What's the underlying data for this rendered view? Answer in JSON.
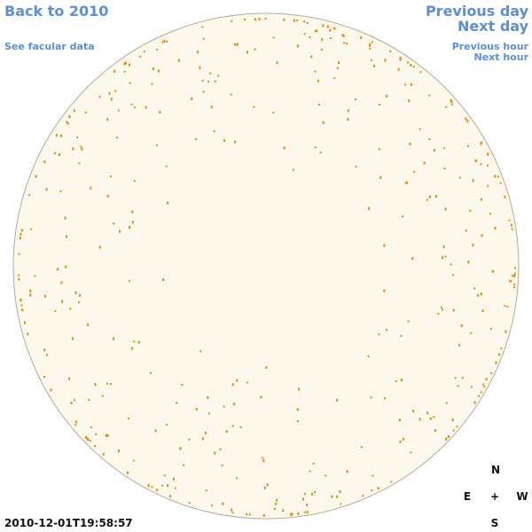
{
  "navigation": {
    "back": "Back to 2010",
    "facular": "See facular data",
    "previous_day": "Previous day",
    "next_day": "Next day",
    "previous_hour": "Previous hour",
    "next_hour": "Next hour"
  },
  "timestamp": "2010-12-01T19:58:57",
  "compass": {
    "north": "N",
    "east": "E",
    "center": "+",
    "west": "W",
    "south": "S"
  }
}
